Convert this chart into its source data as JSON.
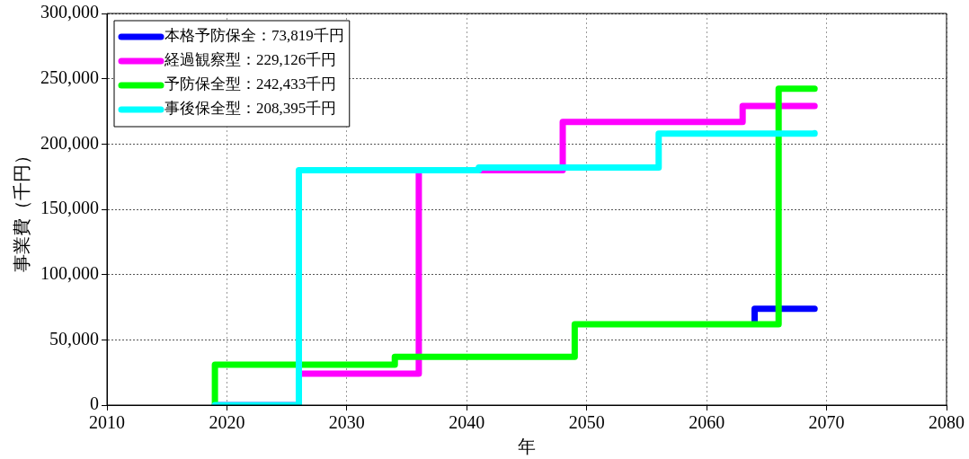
{
  "chart_data": {
    "type": "step",
    "xlabel": "年",
    "ylabel": "事業費（千円）",
    "xlim": [
      2010,
      2080
    ],
    "xticks": [
      2010,
      2020,
      2030,
      2040,
      2050,
      2060,
      2070,
      2080
    ],
    "ylim": [
      0,
      300000
    ],
    "yticks": [
      {
        "value": 0,
        "label": "0"
      },
      {
        "value": 50000,
        "label": "50,000"
      },
      {
        "value": 100000,
        "label": "100,000"
      },
      {
        "value": 150000,
        "label": "150,000"
      },
      {
        "value": 200000,
        "label": "200,000"
      },
      {
        "value": 250000,
        "label": "250,000"
      },
      {
        "value": 300000,
        "label": "300,000"
      }
    ],
    "grid": true,
    "legend": "top left",
    "marker": "none",
    "line_style": "solid",
    "series": [
      {
        "name": "本格予防保全：73,819千円",
        "color": "#0000ff",
        "x": [
          2064,
          2064,
          2069
        ],
        "values": [
          63000,
          73819,
          73819
        ]
      },
      {
        "name": "経過観察型：229,126千円",
        "color": "#ff00ff",
        "x": [
          2019,
          2026,
          2036,
          2048,
          2063,
          2069
        ],
        "values": [
          0,
          24000,
          180000,
          217000,
          229126,
          229126
        ]
      },
      {
        "name": "予防保全型：242,433千円",
        "color": "#00ff00",
        "x": [
          2019,
          2019,
          2034,
          2049,
          2066,
          2069
        ],
        "values": [
          0,
          31000,
          37000,
          62000,
          242433,
          242433
        ]
      },
      {
        "name": "事後保全型：208,395千円",
        "color": "#00ffff",
        "x": [
          2019,
          2026,
          2041,
          2056,
          2069
        ],
        "values": [
          0,
          180000,
          182000,
          208000,
          208395
        ]
      }
    ]
  }
}
